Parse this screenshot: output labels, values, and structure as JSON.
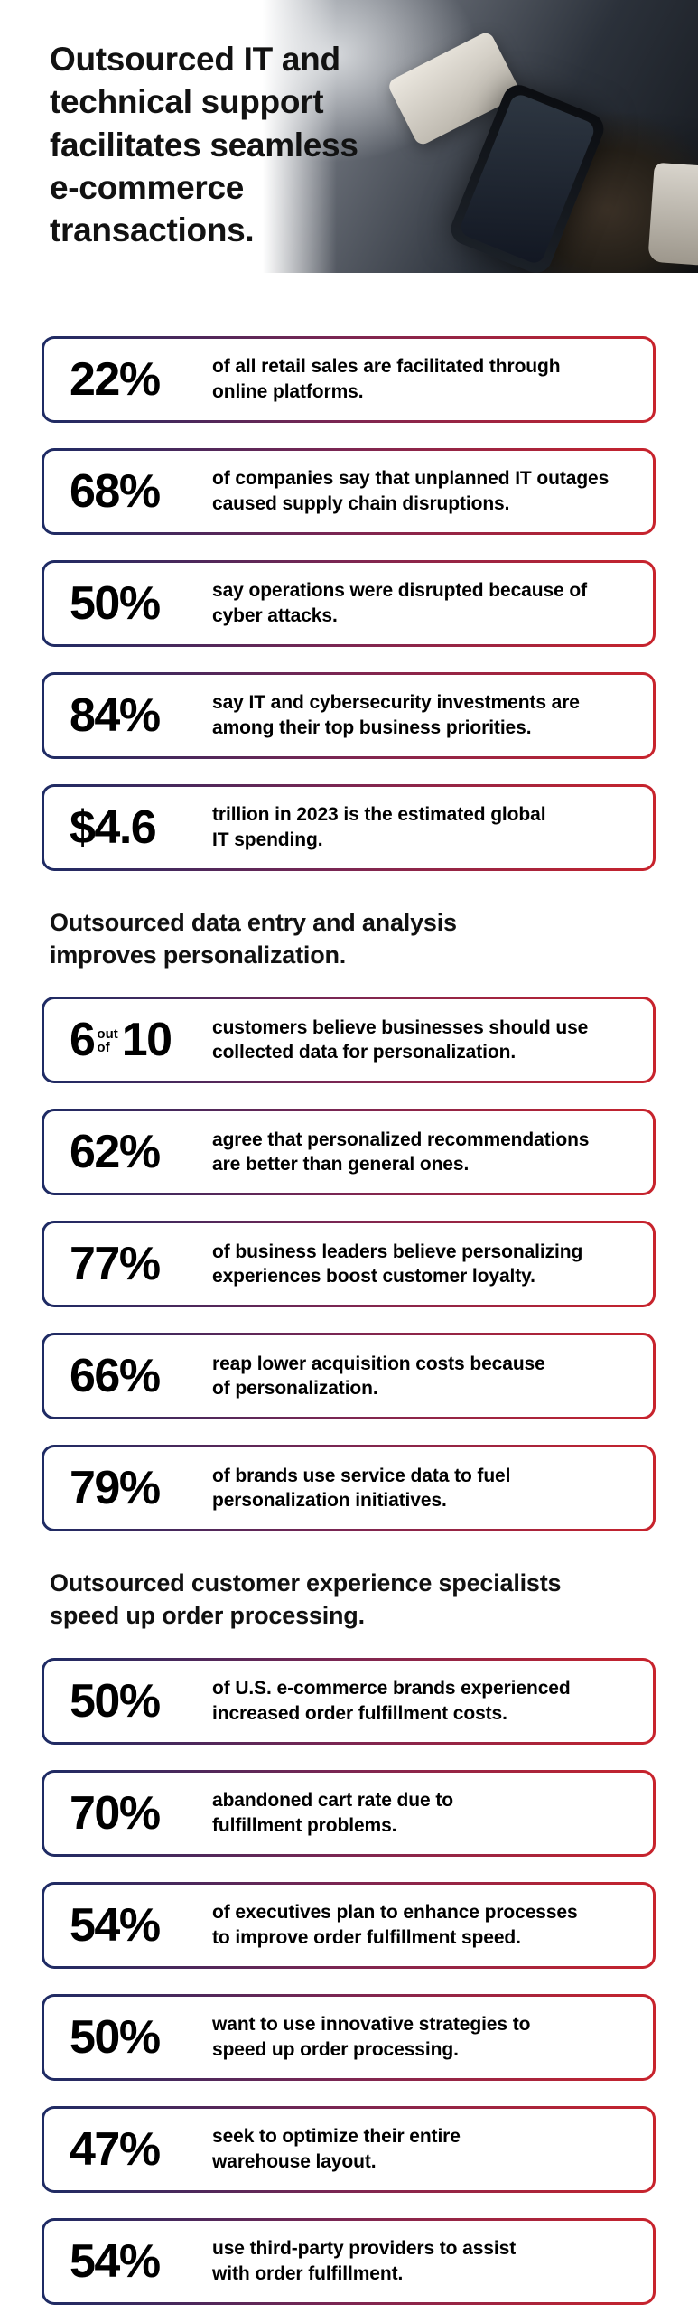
{
  "theme": {
    "background": "#ffffff",
    "text_color": "#0d0d0d",
    "card_border_gradient_start": "#1d2b64",
    "card_border_gradient_mid": "#7a2653",
    "card_border_gradient_end": "#c8232c"
  },
  "header": {
    "title": "Outsourced IT and technical support facilitates seamless e-commerce transactions.",
    "title_lines": [
      "Outsourced IT and",
      "technical support",
      "facilitates seamless",
      "e-commerce",
      "transactions."
    ],
    "photo": "hands-holding-phone-and-credit-card"
  },
  "sections": [
    {
      "cards": [
        {
          "stat": "22%",
          "lines": [
            "of all retail sales are facilitated through",
            "online platforms."
          ]
        },
        {
          "stat": "68%",
          "lines": [
            "of companies say that unplanned IT outages",
            "caused supply chain disruptions."
          ]
        },
        {
          "stat": "50%",
          "lines": [
            "say operations were disrupted because of",
            "cyber attacks."
          ]
        },
        {
          "stat": "84%",
          "lines": [
            "say IT and cybersecurity investments are",
            "among their top business priorities."
          ]
        },
        {
          "stat": "$4.6",
          "lines": [
            "trillion in 2023 is the estimated global",
            "IT spending."
          ]
        }
      ]
    },
    {
      "heading": "Outsourced data entry and analysis improves personalization.",
      "heading_lines": [
        "Outsourced data entry and analysis",
        "improves personalization."
      ],
      "cards": [
        {
          "stat": "6",
          "stat_small": [
            "out",
            "of"
          ],
          "stat_suffix": "10",
          "lines": [
            "customers believe businesses should use",
            "collected data for personalization."
          ]
        },
        {
          "stat": "62%",
          "lines": [
            "agree that personalized recommendations",
            "are better than general ones."
          ]
        },
        {
          "stat": "77%",
          "lines": [
            "of business leaders believe personalizing",
            "experiences boost customer loyalty."
          ]
        },
        {
          "stat": "66%",
          "lines": [
            "reap lower acquisition costs because",
            "of personalization."
          ]
        },
        {
          "stat": "79%",
          "lines": [
            "of brands use service data to fuel",
            "personalization initiatives."
          ]
        }
      ]
    },
    {
      "heading": "Outsourced customer experience specialists speed up order processing.",
      "heading_lines": [
        "Outsourced customer experience specialists",
        "speed up order processing."
      ],
      "cards": [
        {
          "stat": "50%",
          "lines": [
            "of U.S. e-commerce brands experienced",
            "increased order fulfillment costs."
          ]
        },
        {
          "stat": "70%",
          "lines": [
            "abandoned cart rate due to",
            "fulfillment problems."
          ]
        },
        {
          "stat": "54%",
          "lines": [
            "of executives plan to enhance processes",
            "to improve order fulfillment speed."
          ]
        },
        {
          "stat": "50%",
          "lines": [
            "want to use innovative strategies to",
            "speed up order processing."
          ]
        },
        {
          "stat": "47%",
          "lines": [
            "seek to optimize their entire",
            "warehouse layout."
          ]
        },
        {
          "stat": "54%",
          "lines": [
            "use third-party providers to assist",
            "with order fulfillment."
          ]
        }
      ]
    }
  ]
}
